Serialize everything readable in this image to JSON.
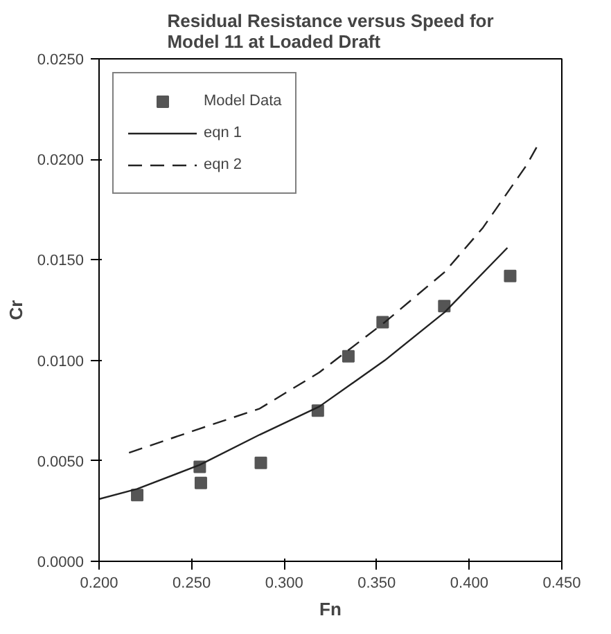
{
  "chart_data": {
    "type": "scatter",
    "title": "Residual Resistance versus Speed for\nModel 11 at Loaded Draft",
    "xlabel": "Fn",
    "ylabel": "Cr",
    "xlim": [
      0.2,
      0.45
    ],
    "xticks": [
      {
        "value": 0.2,
        "label": "0.200"
      },
      {
        "value": 0.25,
        "label": "0.250"
      },
      {
        "value": 0.3,
        "label": "0.300"
      },
      {
        "value": 0.35,
        "label": "0.350"
      },
      {
        "value": 0.4,
        "label": "0.400"
      },
      {
        "value": 0.45,
        "label": "0.450"
      }
    ],
    "ylim": [
      0,
      0.025
    ],
    "yticks": [
      {
        "value": 0,
        "label": "0.0000"
      },
      {
        "value": 0.005,
        "label": "0.0050"
      },
      {
        "value": 0.01,
        "label": "0.0100"
      },
      {
        "value": 0.015,
        "label": "0.0150"
      },
      {
        "value": 0.02,
        "label": "0.0200"
      },
      {
        "value": 0.025,
        "label": "0.0250"
      }
    ],
    "grid": false,
    "legend": "top left",
    "series": [
      {
        "name": "Model Data",
        "marker": "square",
        "color": "#555555",
        "x": [
          0.2206,
          0.2544,
          0.255,
          0.2874,
          0.3182,
          0.3347,
          0.3532,
          0.3865,
          0.4221
        ],
        "values": [
          0.0033,
          0.0047,
          0.0039,
          0.0049,
          0.0075,
          0.0102,
          0.0119,
          0.0127,
          0.0142
        ]
      },
      {
        "name": "eqn 1",
        "type": "line",
        "line_style": "solid",
        "color": "#222222",
        "x": [
          0.2,
          0.2206,
          0.2544,
          0.2868,
          0.319,
          0.3544,
          0.3868,
          0.4206
        ],
        "values": [
          0.0031,
          0.0036,
          0.0048,
          0.0063,
          0.0077,
          0.01,
          0.0124,
          0.0156
        ]
      },
      {
        "name": "eqn 2",
        "type": "line",
        "line_style": "dashed",
        "color": "#222222",
        "x": [
          0.2162,
          0.2544,
          0.2868,
          0.319,
          0.3544,
          0.3868,
          0.4074,
          0.4309,
          0.437
        ],
        "values": [
          0.0054,
          0.0066,
          0.0076,
          0.0094,
          0.0119,
          0.0144,
          0.0166,
          0.0197,
          0.0207
        ]
      }
    ]
  }
}
